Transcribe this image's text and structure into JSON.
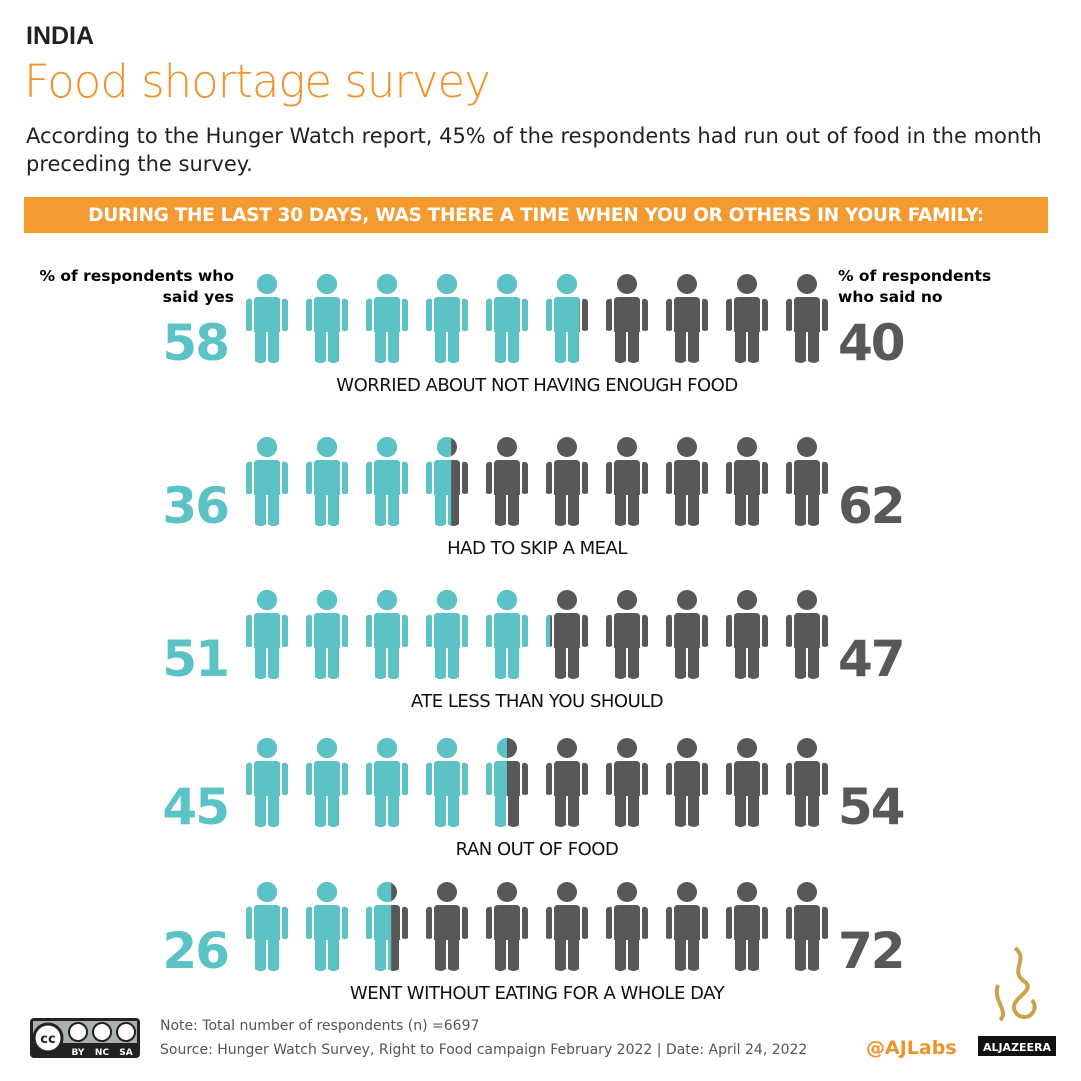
{
  "kicker": "INDIA",
  "chart_data": {
    "type": "pictogram",
    "title": "Food shortage survey",
    "subtitle": "According to the Hunger Watch report, 45% of the respondents had run out of food in the month preceding the survey.",
    "banner": "DURING THE LAST 30 DAYS, WAS THERE A TIME WHEN YOU OR OTHERS IN YOUR FAMILY:",
    "categories": [
      "WORRIED ABOUT NOT HAVING ENOUGH FOOD",
      "HAD TO SKIP A MEAL",
      "ATE LESS THAN YOU SHOULD",
      "RAN OUT OF FOOD",
      "WENT WITHOUT EATING FOR A WHOLE DAY"
    ],
    "series": [
      {
        "name": "% of respondents who said yes",
        "color": "#5bc3c6",
        "values": [
          58,
          36,
          51,
          45,
          26
        ]
      },
      {
        "name": "% of respondents who said no",
        "color": "#58585a",
        "values": [
          40,
          62,
          47,
          54,
          72
        ]
      }
    ]
  },
  "footer": {
    "note": "Note: Total number of respondents (n) =6697",
    "source": "Source: Hunger Watch Survey, Right to Food campaign  February 2022 |  Date: April 24, 2022",
    "license": [
      "BY",
      "NC",
      "SA"
    ],
    "handle": "@AJLabs",
    "logo": "ALJAZEERA"
  }
}
